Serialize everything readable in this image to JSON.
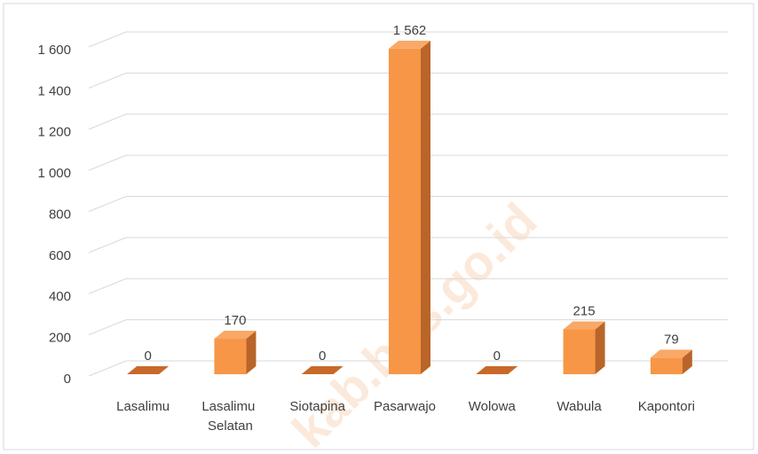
{
  "chart_data": {
    "type": "bar3d",
    "categories": [
      "Lasalimu",
      "Lasalimu Selatan",
      "Siotapina",
      "Pasarwajo",
      "Wolowa",
      "Wabula",
      "Kapontori"
    ],
    "values": [
      0,
      170,
      0,
      1562,
      0,
      215,
      79
    ],
    "value_labels": [
      "0",
      "170",
      "0",
      "1 562",
      "0",
      "215",
      "79"
    ],
    "color": "#f79646",
    "ylim": [
      0,
      1600
    ],
    "yticks": [
      0,
      200,
      400,
      600,
      800,
      {
        "value": 1000,
        "label": "1 000"
      },
      {
        "value": 1200,
        "label": "1 200"
      },
      {
        "value": 1400,
        "label": "1 400"
      },
      {
        "value": 1600,
        "label": "1 600"
      }
    ],
    "grid": true,
    "watermark": "kab.bps.go.id"
  }
}
